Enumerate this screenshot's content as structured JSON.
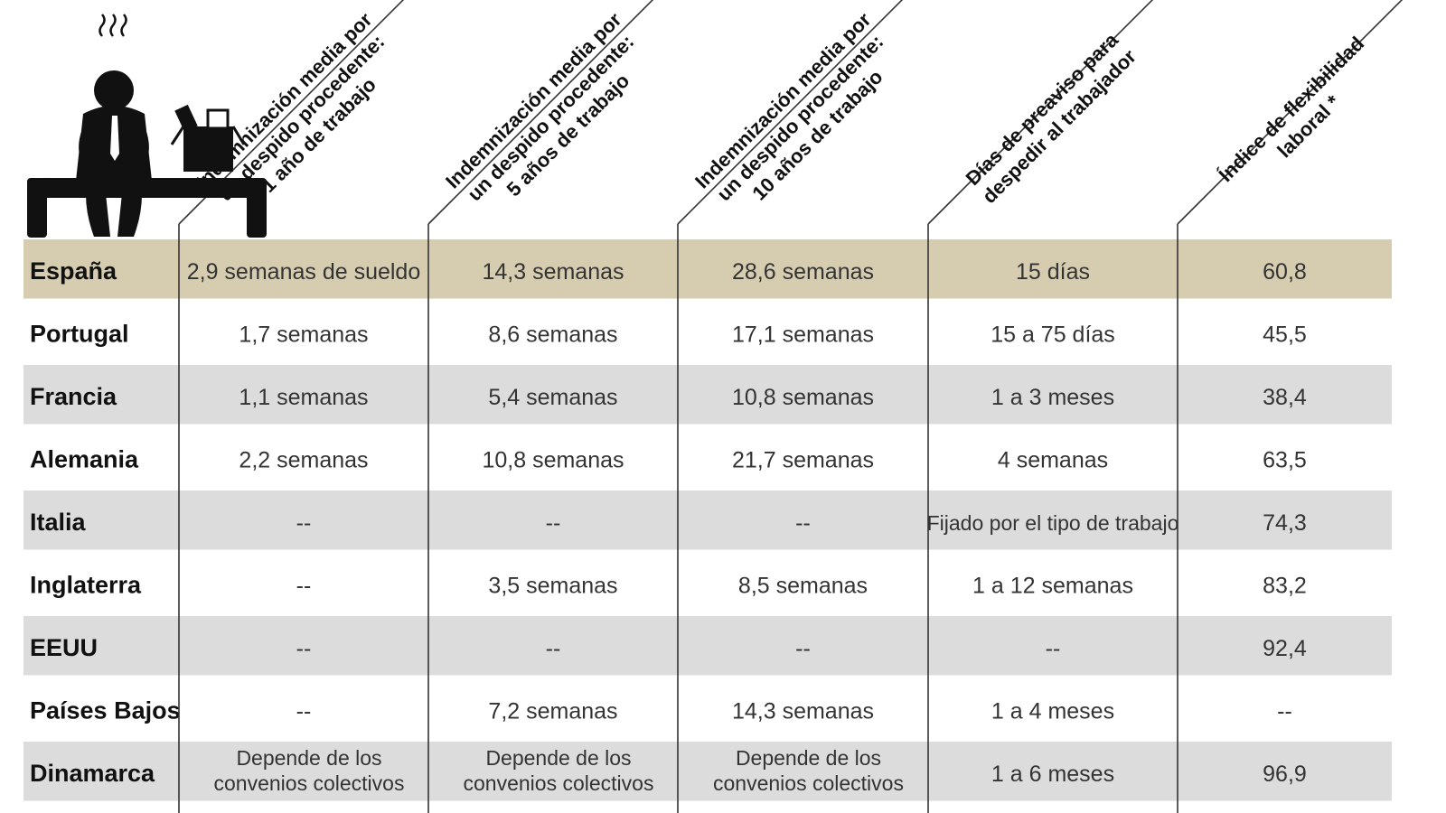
{
  "chart_data": {
    "type": "table",
    "columns": [
      {
        "label": "Indemnización media por un despido procedente: 1 año de trabajo",
        "lines": [
          "Indemnización media por",
          "un despido procedente:",
          "1 año de trabajo"
        ]
      },
      {
        "label": "Indemnización media por un despido procedente: 5 años de trabajo",
        "lines": [
          "Indemnización media por",
          "un despido procedente:",
          "5 años de trabajo"
        ]
      },
      {
        "label": "Indemnización media por un despido procedente: 10 años de trabajo",
        "lines": [
          "Indemnización media por",
          "un despido procedente:",
          "10 años de trabajo"
        ]
      },
      {
        "label": "Días de preaviso para despedir al trabajador",
        "lines": [
          "Días de preaviso para",
          "despedir al trabajador"
        ]
      },
      {
        "label": "Índice de flexibilidad laboral *",
        "lines": [
          "Índice de flexibilidad",
          "laboral *"
        ]
      }
    ],
    "rows": [
      {
        "country": "España",
        "highlight": true,
        "values": [
          "2,9 semanas de sueldo",
          "14,3 semanas",
          "28,6 semanas",
          "15 días",
          "60,8"
        ]
      },
      {
        "country": "Portugal",
        "values": [
          "1,7 semanas",
          "8,6 semanas",
          "17,1 semanas",
          "15 a 75 días",
          "45,5"
        ]
      },
      {
        "country": "Francia",
        "values": [
          "1,1 semanas",
          "5,4 semanas",
          "10,8 semanas",
          "1 a 3 meses",
          "38,4"
        ]
      },
      {
        "country": "Alemania",
        "values": [
          "2,2 semanas",
          "10,8 semanas",
          "21,7 semanas",
          "4 semanas",
          "63,5"
        ]
      },
      {
        "country": "Italia",
        "values": [
          "--",
          "--",
          "--",
          "Fijado por el tipo de trabajo",
          "74,3"
        ]
      },
      {
        "country": "Inglaterra",
        "values": [
          "--",
          "3,5 semanas",
          "8,5 semanas",
          "1 a 12 semanas",
          "83,2"
        ]
      },
      {
        "country": "EEUU",
        "values": [
          "--",
          "--",
          "--",
          "--",
          "92,4"
        ]
      },
      {
        "country": "Países Bajos",
        "values": [
          "--",
          "7,2 semanas",
          "14,3 semanas",
          "1 a 4 meses",
          "--"
        ]
      },
      {
        "country": "Dinamarca",
        "values": [
          "Depende de los convenios colectivos",
          "Depende de los convenios colectivos",
          "Depende de los convenios colectivos",
          "1 a 6 meses",
          "96,9"
        ]
      }
    ]
  },
  "colors": {
    "highlight_row": "#d6cdb0",
    "stripe_row": "#dcdcdc",
    "white_row": "#ffffff",
    "line": "#333333",
    "icon": "#111111"
  },
  "icons": {
    "illustration": "sad-worker-with-box-icon"
  }
}
